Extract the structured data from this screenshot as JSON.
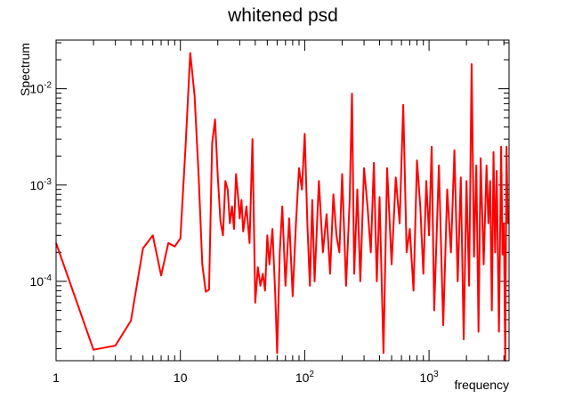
{
  "chart_data": {
    "type": "line",
    "title": "whitened psd",
    "xlabel": "frequency",
    "ylabel": "Spectrum",
    "x_scale": "log",
    "y_scale": "log",
    "xlim": [
      1,
      4400
    ],
    "ylim": [
      1.5e-05,
      0.032
    ],
    "grid": false,
    "legend": "none",
    "x_ticks": [
      {
        "value": 1,
        "base": "1",
        "exp": ""
      },
      {
        "value": 10,
        "base": "10",
        "exp": ""
      },
      {
        "value": 100,
        "base": "10",
        "exp": "2"
      },
      {
        "value": 1000,
        "base": "10",
        "exp": "3"
      }
    ],
    "y_ticks": [
      {
        "value": 0.0001,
        "base": "10",
        "exp": "-4"
      },
      {
        "value": 0.001,
        "base": "10",
        "exp": "-3"
      },
      {
        "value": 0.01,
        "base": "10",
        "exp": "-2"
      }
    ],
    "series": [
      {
        "color": "#ff0000",
        "points": [
          [
            1,
            0.00025
          ],
          [
            2,
            1.95e-05
          ],
          [
            3,
            2.15e-05
          ],
          [
            4,
            3.9e-05
          ],
          [
            5,
            0.00022
          ],
          [
            6,
            0.0003
          ],
          [
            7,
            0.000115
          ],
          [
            8,
            0.00025
          ],
          [
            9,
            0.00023
          ],
          [
            10,
            0.00028
          ],
          [
            11,
            0.0025
          ],
          [
            12,
            0.0235
          ],
          [
            13,
            0.0085
          ],
          [
            14,
            0.0013
          ],
          [
            15,
            0.00015
          ],
          [
            16,
            7.8e-05
          ],
          [
            17,
            8.2e-05
          ],
          [
            18,
            0.0027
          ],
          [
            19,
            0.0048
          ],
          [
            20,
            0.0012
          ],
          [
            21,
            0.00042
          ],
          [
            22,
            0.0003
          ],
          [
            23,
            0.0011
          ],
          [
            24,
            0.0009
          ],
          [
            25,
            0.0004
          ],
          [
            26,
            0.0006
          ],
          [
            27,
            0.00035
          ],
          [
            28,
            0.0013
          ],
          [
            29,
            0.0008
          ],
          [
            30,
            0.00045
          ],
          [
            31,
            0.0007
          ],
          [
            32,
            0.00033
          ],
          [
            34,
            0.0006
          ],
          [
            36,
            0.00025
          ],
          [
            38,
            0.003
          ],
          [
            40,
            6e-05
          ],
          [
            42,
            0.00014
          ],
          [
            44,
            9e-05
          ],
          [
            46,
            0.00012
          ],
          [
            48,
            8e-05
          ],
          [
            50,
            0.0003
          ],
          [
            52,
            0.00015
          ],
          [
            55,
            0.00035
          ],
          [
            58,
            7e-05
          ],
          [
            60,
            1.8e-05
          ],
          [
            63,
            0.0002
          ],
          [
            66,
            0.0006
          ],
          [
            70,
            9e-05
          ],
          [
            75,
            0.00045
          ],
          [
            80,
            7e-05
          ],
          [
            85,
            0.0004
          ],
          [
            90,
            0.0015
          ],
          [
            95,
            0.0009
          ],
          [
            100,
            0.0034
          ],
          [
            105,
            0.0004
          ],
          [
            110,
            9e-05
          ],
          [
            115,
            0.0007
          ],
          [
            120,
            0.0001
          ],
          [
            130,
            0.0011
          ],
          [
            140,
            0.0002
          ],
          [
            150,
            0.0005
          ],
          [
            160,
            0.00012
          ],
          [
            170,
            0.0008
          ],
          [
            180,
            0.0003
          ],
          [
            190,
            0.0002
          ],
          [
            200,
            0.0013
          ],
          [
            215,
            9e-05
          ],
          [
            230,
            0.0007
          ],
          [
            240,
            0.0089
          ],
          [
            250,
            0.00012
          ],
          [
            265,
            0.0009
          ],
          [
            280,
            0.0001
          ],
          [
            300,
            0.0015
          ],
          [
            320,
            0.0006
          ],
          [
            340,
            0.0002
          ],
          [
            360,
            0.0017
          ],
          [
            380,
            0.0001
          ],
          [
            400,
            0.00075
          ],
          [
            430,
            1.8e-05
          ],
          [
            460,
            0.0015
          ],
          [
            500,
            0.00015
          ],
          [
            540,
            0.0012
          ],
          [
            580,
            0.0004
          ],
          [
            620,
            0.0068
          ],
          [
            660,
            0.0002
          ],
          [
            700,
            0.00035
          ],
          [
            750,
            8e-05
          ],
          [
            800,
            0.0018
          ],
          [
            850,
            0.0006
          ],
          [
            900,
            0.00012
          ],
          [
            950,
            0.0011
          ],
          [
            1000,
            0.0003
          ],
          [
            1050,
            0.0025
          ],
          [
            1100,
            5e-05
          ],
          [
            1200,
            0.0016
          ],
          [
            1300,
            3.5e-05
          ],
          [
            1400,
            0.0009
          ],
          [
            1500,
            0.0002
          ],
          [
            1600,
            0.0023
          ],
          [
            1700,
            0.0001
          ],
          [
            1800,
            0.0012
          ],
          [
            1900,
            2.5e-05
          ],
          [
            2000,
            0.0011
          ],
          [
            2100,
            9e-05
          ],
          [
            2200,
            0.018
          ],
          [
            2300,
            0.00018
          ],
          [
            2400,
            0.0016
          ],
          [
            2500,
            3e-05
          ],
          [
            2600,
            0.0019
          ],
          [
            2750,
            0.00015
          ],
          [
            2900,
            0.0016
          ],
          [
            3000,
            0.0004
          ],
          [
            3100,
            0.0011
          ],
          [
            3200,
            5e-05
          ],
          [
            3300,
            0.0022
          ],
          [
            3400,
            0.0002
          ],
          [
            3500,
            0.0014
          ],
          [
            3650,
            3e-05
          ],
          [
            3800,
            0.0025
          ],
          [
            3900,
            0.00019
          ],
          [
            4000,
            0.0004
          ],
          [
            4100,
            1.5e-05
          ],
          [
            4200,
            0.0025
          ],
          [
            4300,
            0.0004
          ]
        ]
      }
    ]
  }
}
